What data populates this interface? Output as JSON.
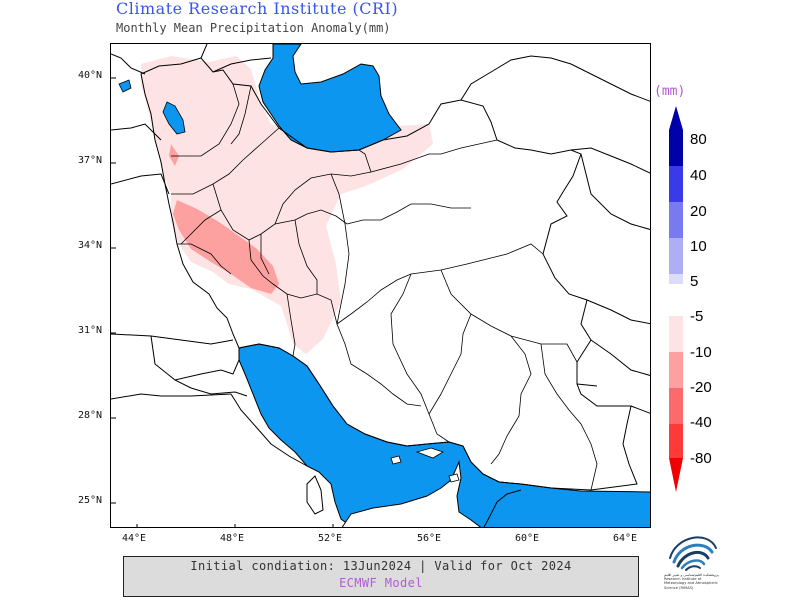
{
  "header": {
    "title": "Climate Research Institute (CRI)",
    "subtitle": "Monthly Mean Precipitation Anomaly(mm)"
  },
  "map": {
    "lat_labels": [
      "40°N",
      "37°N",
      "34°N",
      "31°N",
      "28°N",
      "25°N"
    ],
    "lon_labels": [
      "44°E",
      "48°E",
      "52°E",
      "56°E",
      "60°E",
      "64°E"
    ],
    "sea_color": "#0d96f0",
    "anomaly_colors": {
      "light": "#fde3e3",
      "medium": "#fca0a0"
    }
  },
  "legend": {
    "unit": "(mm)",
    "positive": [
      {
        "label": "80",
        "color": "#0000a8"
      },
      {
        "label": "40",
        "color": "#3a3ae8"
      },
      {
        "label": "20",
        "color": "#7a7af0"
      },
      {
        "label": "10",
        "color": "#aeaef5"
      },
      {
        "label": "5",
        "color": "#dcdcfa"
      }
    ],
    "negative": [
      {
        "label": "-5",
        "color": "#fde3e3"
      },
      {
        "label": "-10",
        "color": "#fca0a0"
      },
      {
        "label": "-20",
        "color": "#fc6b6b"
      },
      {
        "label": "-40",
        "color": "#fc3a3a"
      },
      {
        "label": "-80",
        "color": "#f00000"
      }
    ]
  },
  "info": {
    "initial": "Initial condiation: 13Jun2024 | Valid for Oct 2024",
    "model": "ECMWF Model"
  },
  "logo": {
    "text": "پژوهشکده اقلیم‌شناسی و تغییر اقلیم Research Institute of Meteorology and Atmospheric Science (RIMAS)"
  }
}
